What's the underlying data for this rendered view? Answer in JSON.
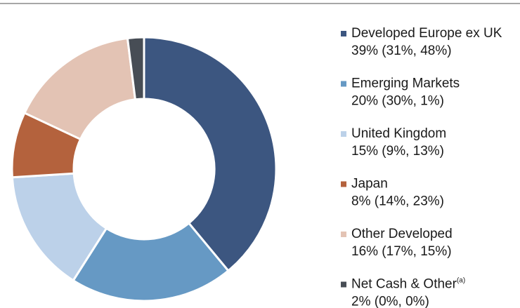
{
  "chart_data": {
    "type": "donut",
    "categories": [
      "Developed Europe ex UK",
      "Emerging Markets",
      "United Kingdom",
      "Japan",
      "Other Developed",
      "Net Cash & Other"
    ],
    "category_notes": [
      null,
      null,
      null,
      null,
      null,
      "(a)"
    ],
    "values": [
      39,
      20,
      15,
      8,
      16,
      2
    ],
    "value_labels": [
      "39% (31%, 48%)",
      "20% (30%, 1%)",
      "15% (9%, 13%)",
      "8% (14%, 23%)",
      "16% (17%, 15%)",
      "2% (0%, 0%)"
    ],
    "colors": [
      "#3c5680",
      "#6699c4",
      "#bcd1e9",
      "#b4623d",
      "#e3c3b4",
      "#474d55"
    ]
  }
}
